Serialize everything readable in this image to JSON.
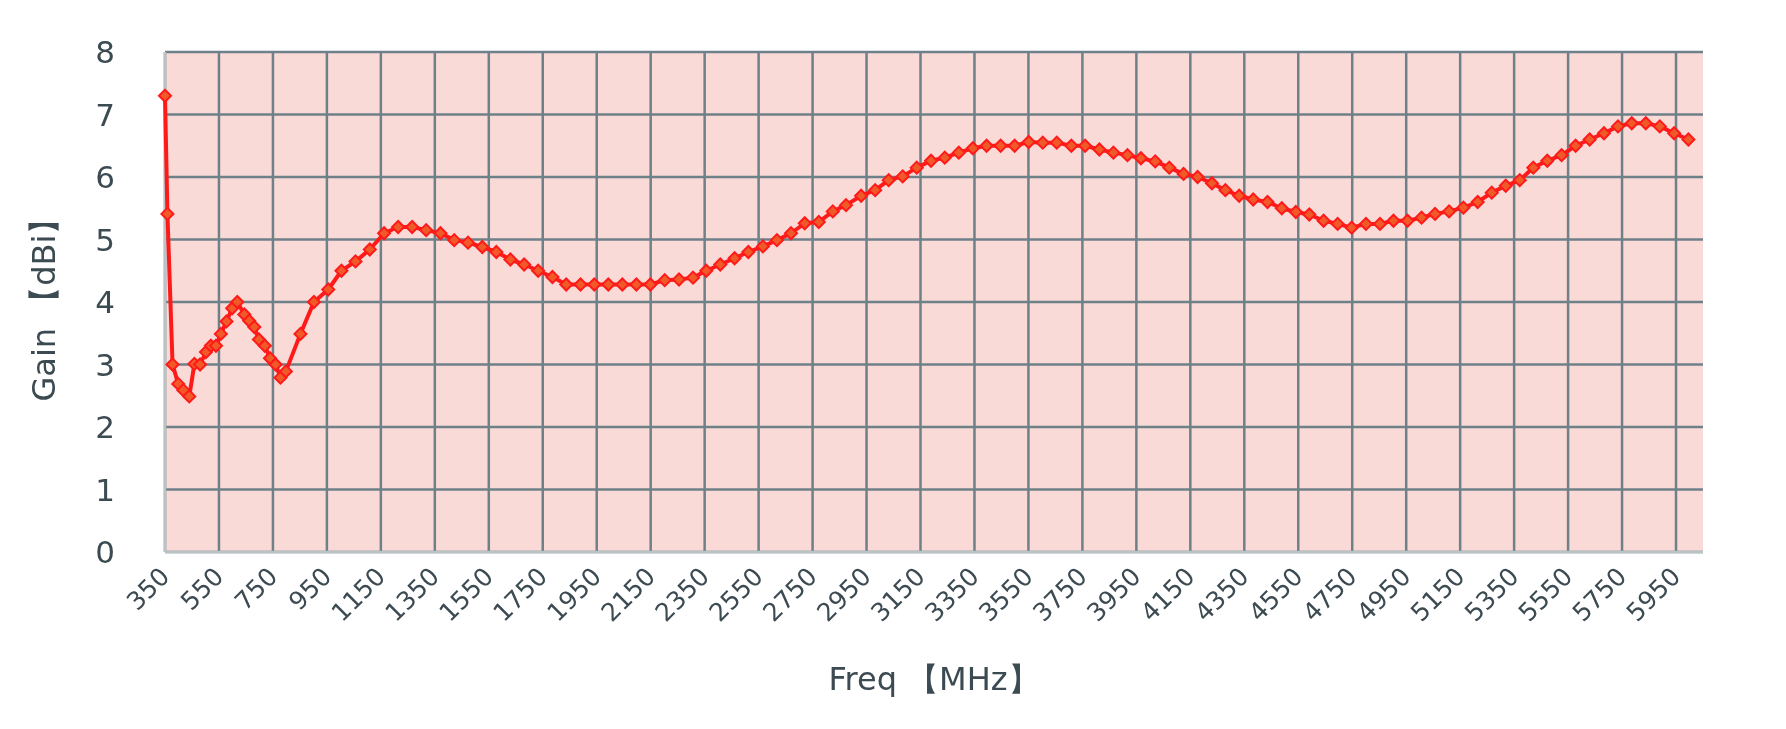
{
  "chart_data": {
    "type": "line",
    "xlabel": "Freq 【MHz】",
    "ylabel": "Gain 【dBi】",
    "x": [
      350,
      359,
      378,
      399,
      418,
      440,
      459,
      480,
      502,
      520,
      539,
      557,
      578,
      599,
      618,
      644,
      662,
      681,
      698,
      720,
      739,
      760,
      778,
      798,
      852,
      902,
      955,
      1004,
      1056,
      1109,
      1162,
      1214,
      1266,
      1318,
      1371,
      1422,
      1473,
      1526,
      1578,
      1630,
      1681,
      1733,
      1786,
      1837,
      1890,
      1941,
      1993,
      2045,
      2097,
      2149,
      2202,
      2255,
      2307,
      2356,
      2408,
      2461,
      2512,
      2566,
      2618,
      2670,
      2721,
      2773,
      2825,
      2874,
      2930,
      2982,
      3032,
      3084,
      3136,
      3189,
      3240,
      3292,
      3344,
      3395,
      3447,
      3499,
      3551,
      3603,
      3655,
      3709,
      3760,
      3813,
      3865,
      3917,
      3967,
      4020,
      4072,
      4125,
      4177,
      4230,
      4280,
      4331,
      4383,
      4436,
      4489,
      4541,
      4591,
      4644,
      4696,
      4748,
      4801,
      4853,
      4903,
      4955,
      5007,
      5057,
      5109,
      5162,
      5215,
      5267,
      5319,
      5371,
      5421,
      5473,
      5526,
      5578,
      5630,
      5683,
      5735,
      5786,
      5838,
      5890,
      5943,
      5996
    ],
    "series": [
      {
        "color": "#ff1a1a",
        "values": [
          7.3,
          5.41,
          3.0,
          2.69,
          2.59,
          2.49,
          3.01,
          3.0,
          3.2,
          3.3,
          3.3,
          3.49,
          3.69,
          3.9,
          4.0,
          3.8,
          3.7,
          3.6,
          3.4,
          3.3,
          3.1,
          3.0,
          2.79,
          2.89,
          3.49,
          4.0,
          4.2,
          4.5,
          4.65,
          4.84,
          5.1,
          5.2,
          5.2,
          5.15,
          5.1,
          4.99,
          4.95,
          4.88,
          4.8,
          4.68,
          4.6,
          4.5,
          4.4,
          4.28,
          4.28,
          4.28,
          4.28,
          4.28,
          4.28,
          4.28,
          4.35,
          4.36,
          4.39,
          4.5,
          4.6,
          4.7,
          4.8,
          4.89,
          4.99,
          5.1,
          5.26,
          5.28,
          5.45,
          5.55,
          5.7,
          5.79,
          5.95,
          6.01,
          6.15,
          6.26,
          6.31,
          6.39,
          6.46,
          6.5,
          6.5,
          6.5,
          6.56,
          6.55,
          6.55,
          6.5,
          6.5,
          6.44,
          6.39,
          6.35,
          6.3,
          6.25,
          6.15,
          6.05,
          6.0,
          5.9,
          5.79,
          5.7,
          5.64,
          5.6,
          5.5,
          5.44,
          5.4,
          5.3,
          5.25,
          5.19,
          5.25,
          5.25,
          5.3,
          5.3,
          5.35,
          5.41,
          5.45,
          5.51,
          5.6,
          5.75,
          5.86,
          5.95,
          6.15,
          6.26,
          6.35,
          6.5,
          6.6,
          6.7,
          6.81,
          6.86,
          6.86,
          6.81,
          6.7,
          6.6
        ]
      }
    ],
    "xlim": [
      350,
      6050
    ],
    "xticks": [
      350,
      550,
      750,
      950,
      1150,
      1350,
      1550,
      1750,
      1950,
      2150,
      2350,
      2550,
      2750,
      2950,
      3150,
      3350,
      3550,
      3750,
      3950,
      4150,
      4350,
      4550,
      4750,
      4950,
      5150,
      5350,
      5550,
      5750,
      5950
    ],
    "ylim": [
      0,
      8
    ],
    "yticks": [
      0,
      1,
      2,
      3,
      4,
      5,
      6,
      7,
      8
    ],
    "grid": true,
    "marker": "diamond",
    "line_style": "solid"
  }
}
